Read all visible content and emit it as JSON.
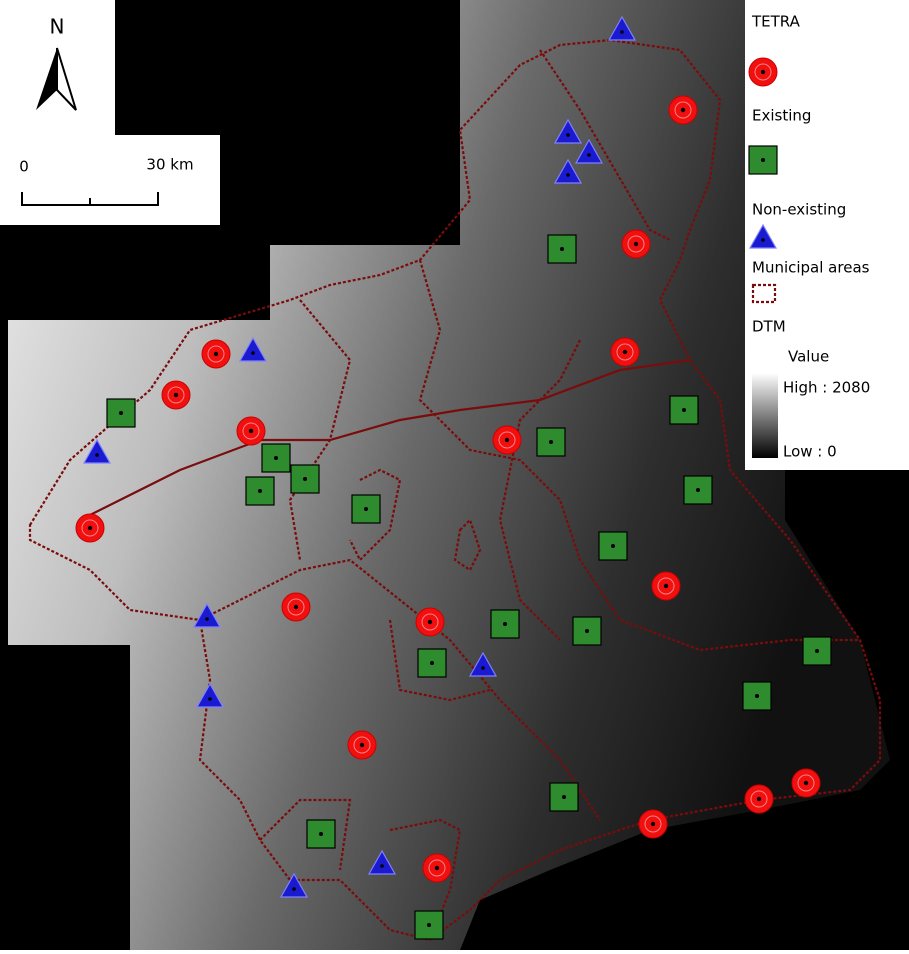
{
  "north": "N",
  "scale": {
    "zero": "0",
    "distance": "30 km"
  },
  "legend": {
    "items": [
      "TETRA",
      "Existing",
      "Non-existing",
      "Municipal areas"
    ],
    "dtm": {
      "title": "DTM",
      "subtitle": "Value",
      "high": "High : 2080",
      "low": "Low : 0"
    }
  }
}
